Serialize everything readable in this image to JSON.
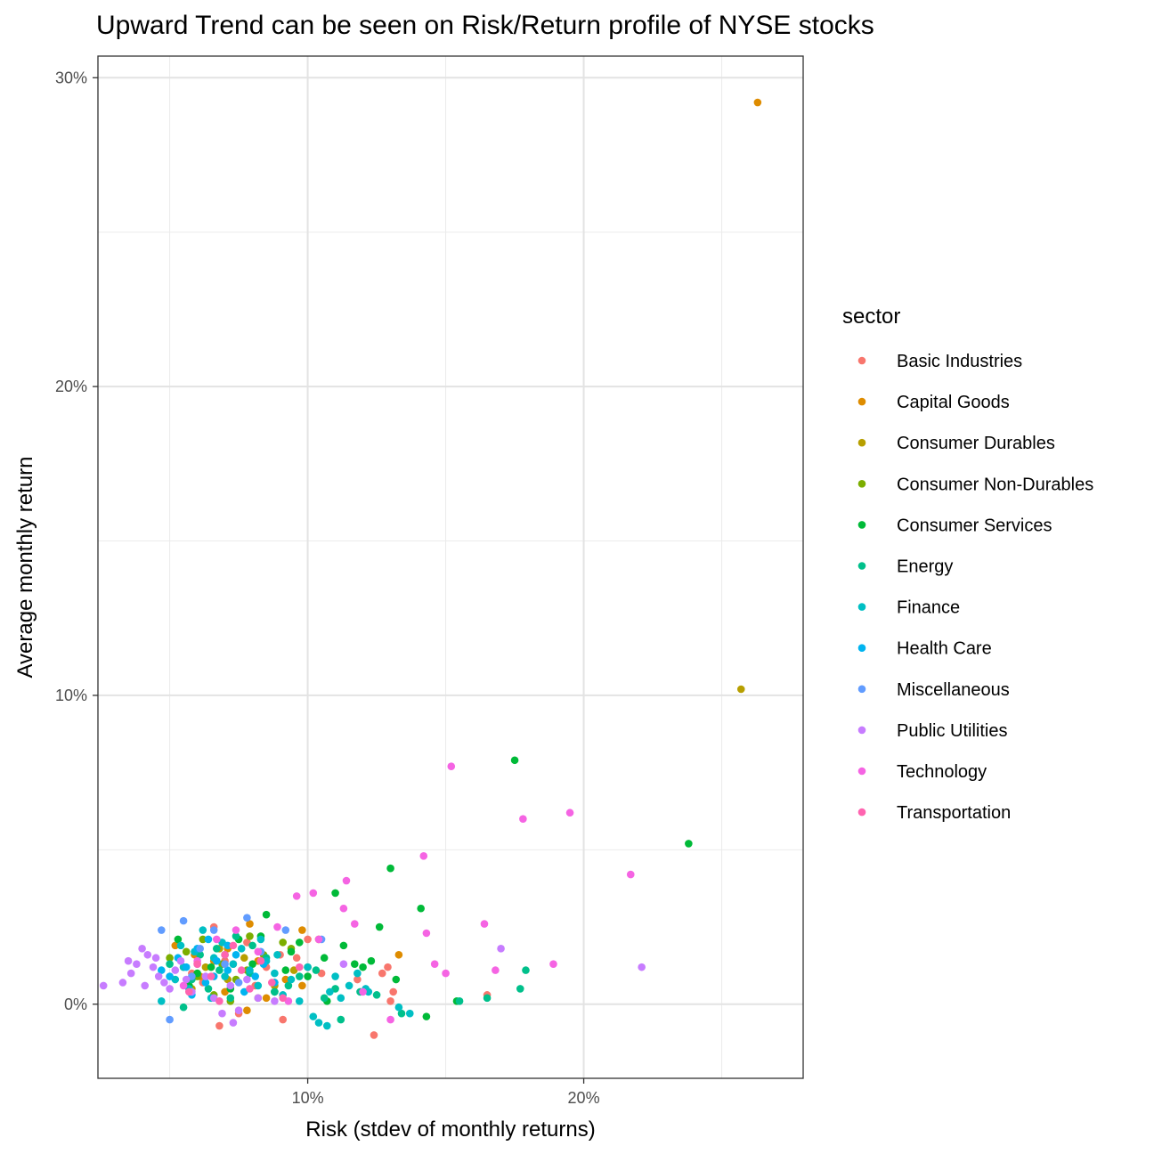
{
  "chart_data": {
    "type": "scatter",
    "title": "Upward Trend can be seen on Risk/Return profile of NYSE stocks",
    "xlabel": "Risk (stdev of monthly returns)",
    "ylabel": "Average monthly return",
    "xlim": [
      0.024,
      0.2795
    ],
    "ylim": [
      -0.024,
      0.307
    ],
    "x_ticks": [
      {
        "value": 0.1,
        "label": "10%"
      },
      {
        "value": 0.2,
        "label": "20%"
      }
    ],
    "y_ticks": [
      {
        "value": 0.0,
        "label": "0%"
      },
      {
        "value": 0.1,
        "label": "10%"
      },
      {
        "value": 0.2,
        "label": "20%"
      },
      {
        "value": 0.3,
        "label": "30%"
      }
    ],
    "grid": true,
    "legend": {
      "title": "sector",
      "position": "right"
    },
    "series": [
      {
        "name": "Basic Industries",
        "color": "#F8766D",
        "points": [
          [
            0.066,
            0.025
          ],
          [
            0.078,
            0.02
          ],
          [
            0.085,
            0.012
          ],
          [
            0.09,
            0.016
          ],
          [
            0.096,
            0.015
          ],
          [
            0.1,
            0.021
          ],
          [
            0.105,
            0.01
          ],
          [
            0.118,
            0.008
          ],
          [
            0.127,
            0.01
          ],
          [
            0.129,
            0.012
          ],
          [
            0.13,
            0.001
          ],
          [
            0.131,
            0.004
          ],
          [
            0.124,
            -0.01
          ],
          [
            0.165,
            0.003
          ],
          [
            0.091,
            -0.005
          ],
          [
            0.068,
            -0.007
          ],
          [
            0.075,
            -0.003
          ],
          [
            0.062,
            0.007
          ],
          [
            0.07,
            0.014
          ],
          [
            0.058,
            0.01
          ],
          [
            0.073,
            0.013
          ],
          [
            0.081,
            0.006
          ],
          [
            0.055,
            0.012
          ]
        ]
      },
      {
        "name": "Capital Goods",
        "color": "#DE8C00",
        "points": [
          [
            0.263,
            0.292
          ],
          [
            0.133,
            0.016
          ],
          [
            0.098,
            0.024
          ],
          [
            0.079,
            0.026
          ],
          [
            0.071,
            0.018
          ],
          [
            0.066,
            0.014
          ],
          [
            0.078,
            -0.002
          ],
          [
            0.085,
            0.002
          ],
          [
            0.092,
            0.008
          ],
          [
            0.059,
            0.016
          ],
          [
            0.052,
            0.019
          ],
          [
            0.061,
            0.009
          ],
          [
            0.07,
            0.004
          ],
          [
            0.082,
            0.014
          ],
          [
            0.104,
            0.021
          ],
          [
            0.098,
            0.006
          ]
        ]
      },
      {
        "name": "Consumer Durables",
        "color": "#B79F00",
        "points": [
          [
            0.257,
            0.102
          ],
          [
            0.063,
            0.012
          ],
          [
            0.071,
            0.008
          ],
          [
            0.077,
            0.015
          ],
          [
            0.088,
            0.006
          ],
          [
            0.058,
            0.005
          ],
          [
            0.095,
            0.011
          ],
          [
            0.068,
            0.018
          ],
          [
            0.082,
            0.002
          ]
        ]
      },
      {
        "name": "Consumer Non-Durables",
        "color": "#7CAE00",
        "points": [
          [
            0.056,
            0.017
          ],
          [
            0.062,
            0.021
          ],
          [
            0.069,
            0.013
          ],
          [
            0.074,
            0.008
          ],
          [
            0.079,
            0.022
          ],
          [
            0.084,
            0.016
          ],
          [
            0.094,
            0.018
          ],
          [
            0.1,
            0.012
          ],
          [
            0.066,
            0.003
          ],
          [
            0.072,
            0.001
          ],
          [
            0.06,
            0.009
          ],
          [
            0.05,
            0.015
          ],
          [
            0.088,
            0.007
          ],
          [
            0.078,
            0.011
          ],
          [
            0.091,
            0.02
          ]
        ]
      },
      {
        "name": "Consumer Services",
        "color": "#00BA38",
        "points": [
          [
            0.175,
            0.079
          ],
          [
            0.238,
            0.052
          ],
          [
            0.13,
            0.044
          ],
          [
            0.141,
            0.031
          ],
          [
            0.11,
            0.036
          ],
          [
            0.126,
            0.025
          ],
          [
            0.113,
            0.019
          ],
          [
            0.117,
            0.013
          ],
          [
            0.12,
            0.012
          ],
          [
            0.123,
            0.014
          ],
          [
            0.132,
            0.008
          ],
          [
            0.143,
            -0.004
          ],
          [
            0.154,
            0.001
          ],
          [
            0.085,
            0.029
          ],
          [
            0.075,
            0.021
          ],
          [
            0.083,
            0.022
          ],
          [
            0.094,
            0.017
          ],
          [
            0.097,
            0.02
          ],
          [
            0.106,
            0.015
          ],
          [
            0.065,
            0.012
          ],
          [
            0.07,
            0.016
          ],
          [
            0.053,
            0.021
          ],
          [
            0.06,
            0.01
          ],
          [
            0.08,
            0.013
          ],
          [
            0.088,
            0.004
          ],
          [
            0.1,
            0.009
          ],
          [
            0.072,
            0.005
          ],
          [
            0.057,
            0.006
          ],
          [
            0.107,
            0.001
          ],
          [
            0.092,
            0.011
          ]
        ]
      },
      {
        "name": "Energy",
        "color": "#00C08B",
        "points": [
          [
            0.165,
            0.002
          ],
          [
            0.177,
            0.005
          ],
          [
            0.179,
            0.011
          ],
          [
            0.155,
            0.001
          ],
          [
            0.125,
            0.003
          ],
          [
            0.134,
            -0.003
          ],
          [
            0.11,
            0.005
          ],
          [
            0.103,
            0.011
          ],
          [
            0.112,
            -0.005
          ],
          [
            0.097,
            0.009
          ],
          [
            0.085,
            0.015
          ],
          [
            0.08,
            0.019
          ],
          [
            0.074,
            0.022
          ],
          [
            0.068,
            0.011
          ],
          [
            0.064,
            0.005
          ],
          [
            0.058,
            0.008
          ],
          [
            0.061,
            0.016
          ],
          [
            0.055,
            -0.001
          ],
          [
            0.072,
            0.002
          ],
          [
            0.079,
            0.01
          ],
          [
            0.088,
            0.004
          ],
          [
            0.093,
            0.006
          ],
          [
            0.106,
            0.002
          ],
          [
            0.119,
            0.004
          ],
          [
            0.05,
            0.013
          ],
          [
            0.067,
            0.018
          ]
        ]
      },
      {
        "name": "Finance",
        "color": "#00BFC4",
        "points": [
          [
            0.047,
            0.001
          ],
          [
            0.052,
            0.008
          ],
          [
            0.055,
            0.012
          ],
          [
            0.059,
            0.017
          ],
          [
            0.062,
            0.024
          ],
          [
            0.066,
            0.015
          ],
          [
            0.07,
            0.009
          ],
          [
            0.073,
            0.013
          ],
          [
            0.076,
            0.018
          ],
          [
            0.079,
            0.011
          ],
          [
            0.082,
            0.006
          ],
          [
            0.085,
            0.014
          ],
          [
            0.088,
            0.01
          ],
          [
            0.091,
            0.003
          ],
          [
            0.094,
            0.008
          ],
          [
            0.097,
            0.001
          ],
          [
            0.1,
            0.012
          ],
          [
            0.102,
            -0.004
          ],
          [
            0.104,
            -0.006
          ],
          [
            0.107,
            -0.007
          ],
          [
            0.11,
            0.009
          ],
          [
            0.112,
            0.002
          ],
          [
            0.115,
            0.006
          ],
          [
            0.118,
            0.01
          ],
          [
            0.122,
            0.004
          ],
          [
            0.133,
            -0.001
          ],
          [
            0.137,
            -0.003
          ],
          [
            0.121,
            0.005
          ],
          [
            0.108,
            0.004
          ],
          [
            0.065,
            0.002
          ],
          [
            0.069,
            0.02
          ],
          [
            0.057,
            0.005
          ],
          [
            0.054,
            0.019
          ],
          [
            0.083,
            0.021
          ],
          [
            0.089,
            0.016
          ]
        ]
      },
      {
        "name": "Health Care",
        "color": "#00B4F0",
        "points": [
          [
            0.05,
            0.009
          ],
          [
            0.053,
            0.015
          ],
          [
            0.056,
            0.012
          ],
          [
            0.06,
            0.018
          ],
          [
            0.063,
            0.007
          ],
          [
            0.067,
            0.014
          ],
          [
            0.071,
            0.011
          ],
          [
            0.074,
            0.016
          ],
          [
            0.077,
            0.004
          ],
          [
            0.081,
            0.009
          ],
          [
            0.084,
            0.013
          ],
          [
            0.064,
            0.021
          ],
          [
            0.058,
            0.003
          ],
          [
            0.071,
            0.019
          ],
          [
            0.047,
            0.011
          ],
          [
            0.088,
            0.007
          ],
          [
            0.066,
            0.009
          ]
        ]
      },
      {
        "name": "Miscellaneous",
        "color": "#619CFF",
        "points": [
          [
            0.047,
            0.024
          ],
          [
            0.055,
            0.027
          ],
          [
            0.066,
            0.024
          ],
          [
            0.078,
            0.028
          ],
          [
            0.092,
            0.024
          ],
          [
            0.105,
            0.021
          ],
          [
            0.05,
            -0.005
          ],
          [
            0.061,
            0.018
          ],
          [
            0.07,
            0.013
          ],
          [
            0.058,
            0.009
          ],
          [
            0.083,
            0.017
          ],
          [
            0.075,
            0.007
          ]
        ]
      },
      {
        "name": "Public Utilities",
        "color": "#C77CFF",
        "points": [
          [
            0.026,
            0.006
          ],
          [
            0.033,
            0.007
          ],
          [
            0.036,
            0.01
          ],
          [
            0.038,
            0.013
          ],
          [
            0.04,
            0.018
          ],
          [
            0.042,
            0.016
          ],
          [
            0.044,
            0.012
          ],
          [
            0.046,
            0.009
          ],
          [
            0.048,
            0.007
          ],
          [
            0.05,
            0.005
          ],
          [
            0.052,
            0.011
          ],
          [
            0.054,
            0.014
          ],
          [
            0.056,
            0.008
          ],
          [
            0.058,
            0.004
          ],
          [
            0.06,
            0.013
          ],
          [
            0.063,
            0.009
          ],
          [
            0.066,
            0.002
          ],
          [
            0.069,
            -0.003
          ],
          [
            0.072,
            0.006
          ],
          [
            0.075,
            -0.002
          ],
          [
            0.078,
            0.008
          ],
          [
            0.082,
            0.002
          ],
          [
            0.088,
            0.001
          ],
          [
            0.113,
            0.013
          ],
          [
            0.17,
            0.018
          ],
          [
            0.221,
            0.012
          ],
          [
            0.041,
            0.006
          ],
          [
            0.045,
            0.015
          ],
          [
            0.035,
            0.014
          ],
          [
            0.073,
            -0.006
          ]
        ]
      },
      {
        "name": "Technology",
        "color": "#F564E3",
        "points": [
          [
            0.152,
            0.077
          ],
          [
            0.178,
            0.06
          ],
          [
            0.195,
            0.062
          ],
          [
            0.217,
            0.042
          ],
          [
            0.142,
            0.048
          ],
          [
            0.114,
            0.04
          ],
          [
            0.102,
            0.036
          ],
          [
            0.096,
            0.035
          ],
          [
            0.113,
            0.031
          ],
          [
            0.117,
            0.026
          ],
          [
            0.164,
            0.026
          ],
          [
            0.143,
            0.023
          ],
          [
            0.168,
            0.011
          ],
          [
            0.189,
            0.013
          ],
          [
            0.146,
            0.013
          ],
          [
            0.15,
            0.01
          ],
          [
            0.104,
            0.021
          ],
          [
            0.089,
            0.025
          ],
          [
            0.13,
            -0.005
          ],
          [
            0.12,
            0.004
          ],
          [
            0.082,
            0.017
          ],
          [
            0.074,
            0.024
          ],
          [
            0.067,
            0.021
          ],
          [
            0.06,
            0.014
          ],
          [
            0.093,
            0.001
          ],
          [
            0.055,
            0.006
          ]
        ]
      },
      {
        "name": "Transportation",
        "color": "#FF64B0",
        "points": [
          [
            0.06,
            0.013
          ],
          [
            0.065,
            0.009
          ],
          [
            0.07,
            0.016
          ],
          [
            0.076,
            0.011
          ],
          [
            0.083,
            0.014
          ],
          [
            0.087,
            0.007
          ],
          [
            0.091,
            0.002
          ],
          [
            0.097,
            0.012
          ],
          [
            0.057,
            0.004
          ],
          [
            0.068,
            0.001
          ],
          [
            0.073,
            0.019
          ],
          [
            0.079,
            0.005
          ]
        ]
      }
    ]
  }
}
